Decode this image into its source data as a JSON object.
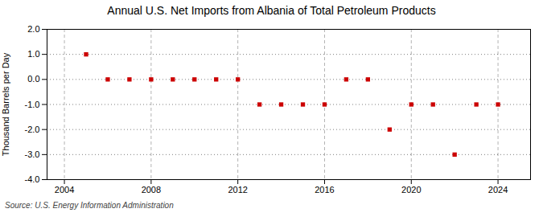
{
  "chart_data": {
    "type": "scatter",
    "title": "Annual U.S. Net Imports from Albania of Total Petroleum Products",
    "ylabel": "Thousand Barrels per Day",
    "annotations": [
      "Source: U.S. Energy Information Administration"
    ],
    "x": [
      2005,
      2006,
      2007,
      2008,
      2009,
      2010,
      2011,
      2012,
      2013,
      2014,
      2015,
      2016,
      2017,
      2018,
      2019,
      2020,
      2021,
      2022,
      2023,
      2024
    ],
    "values": [
      1.0,
      0.0,
      0.0,
      0.0,
      0.0,
      0.0,
      0.0,
      0.0,
      -1.0,
      -1.0,
      -1.0,
      -1.0,
      0.0,
      0.0,
      -2.0,
      -1.0,
      -1.0,
      -3.0,
      -1.0,
      -1.0
    ],
    "color": "#cc0000",
    "marker": "square",
    "xlim": [
      2003.2,
      2025.5
    ],
    "ylim": [
      -4.0,
      2.0
    ],
    "xticks": [
      2004,
      2008,
      2012,
      2016,
      2020,
      2024
    ],
    "yticks": [
      {
        "value": -4.0,
        "label": "-4.0"
      },
      {
        "value": -3.0,
        "label": "-3.0"
      },
      {
        "value": -2.0,
        "label": "-2.0"
      },
      {
        "value": -1.0,
        "label": "-1.0"
      },
      {
        "value": 0.0,
        "label": "0.0"
      },
      {
        "value": 1.0,
        "label": "1.0"
      },
      {
        "value": 2.0,
        "label": "2.0"
      }
    ],
    "grid": true
  }
}
